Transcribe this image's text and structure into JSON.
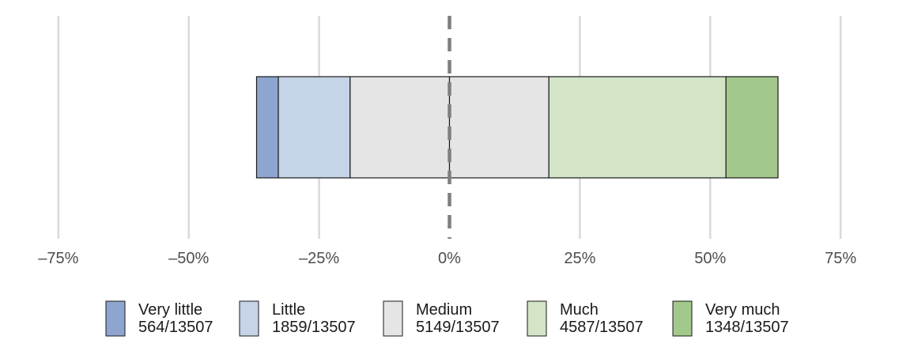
{
  "chart_data": {
    "type": "bar",
    "orientation": "horizontal",
    "stacking": "diverging",
    "x": {
      "ticks": [
        -75,
        -50,
        -25,
        0,
        25,
        50,
        75
      ],
      "tick_labels": [
        "–75%",
        "–50%",
        "–25%",
        "0%",
        "25%",
        "50%",
        "75%"
      ],
      "range": [
        -85,
        85
      ]
    },
    "grid": true,
    "center_line": "dashed",
    "legend_position": "bottom",
    "series": [
      {
        "name": "Very little",
        "count": 564,
        "total": 13507,
        "label": "564/13507",
        "color": "#8da5cf"
      },
      {
        "name": "Little",
        "count": 1859,
        "total": 13507,
        "label": "1859/13507",
        "color": "#c6d4e7"
      },
      {
        "name": "Medium",
        "count": 5149,
        "total": 13507,
        "label": "5149/13507",
        "color": "#e5e5e5"
      },
      {
        "name": "Much",
        "count": 4587,
        "total": 13507,
        "label": "4587/13507",
        "color": "#d3e4c7"
      },
      {
        "name": "Very much",
        "count": 1348,
        "total": 13507,
        "label": "1348/13507",
        "color": "#a3c88b"
      }
    ]
  }
}
